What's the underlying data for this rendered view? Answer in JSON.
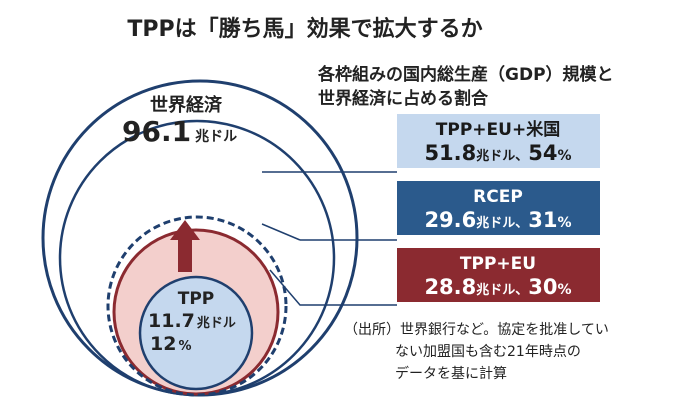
{
  "title": "TPPは「勝ち馬」効果で拡大するか",
  "subtitle": [
    "各枠組みの国内総生産（GDP）規模と",
    "世界経済に占める割合"
  ],
  "world": {
    "label": "世界経済",
    "value": "96.1",
    "unit": "兆ドル"
  },
  "boxes": [
    {
      "name": "TPP+EU+米国",
      "value": "51.8",
      "unit": "兆ドル、",
      "share": "54",
      "pct": "%"
    },
    {
      "name": "RCEP",
      "value": "29.6",
      "unit": "兆ドル、",
      "share": "31",
      "pct": "%"
    },
    {
      "name": "TPP+EU",
      "value": "28.8",
      "unit": "兆ドル、",
      "share": "30",
      "pct": "%"
    }
  ],
  "tpp": {
    "label": "TPP",
    "value": "11.7",
    "unit": "兆ドル",
    "share": "12",
    "pct": "%"
  },
  "source": [
    "（出所）世界銀行など。協定を批准してい",
    "ない加盟国も含む21年時点の",
    "データを基に計算"
  ]
}
